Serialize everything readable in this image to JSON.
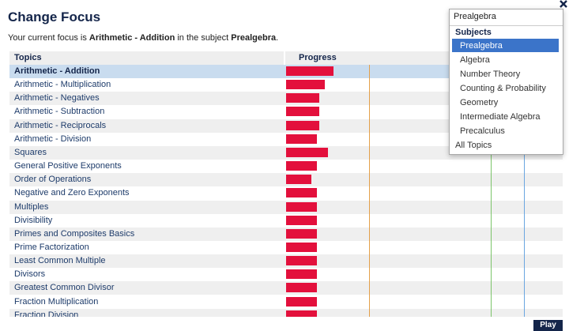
{
  "header": {
    "title": "Change Focus",
    "intro": [
      "Your current focus is ",
      "Arithmetic - Addition",
      " in the subject ",
      "Prealgebra",
      "."
    ]
  },
  "table": {
    "columns": [
      "Topics",
      "Progress"
    ],
    "selected_row": 0,
    "progress_max": 100,
    "markers": [
      {
        "value": 30,
        "color": "#e3a04a"
      },
      {
        "value": 74,
        "color": "#7cc46a"
      },
      {
        "value": 86,
        "color": "#6aa6e0"
      }
    ],
    "rows": [
      {
        "topic": "Arithmetic - Addition",
        "progress": 17
      },
      {
        "topic": "Arithmetic - Multiplication",
        "progress": 14
      },
      {
        "topic": "Arithmetic - Negatives",
        "progress": 12
      },
      {
        "topic": "Arithmetic - Subtraction",
        "progress": 12
      },
      {
        "topic": "Arithmetic - Reciprocals",
        "progress": 12
      },
      {
        "topic": "Arithmetic - Division",
        "progress": 11
      },
      {
        "topic": "Squares",
        "progress": 15
      },
      {
        "topic": "General Positive Exponents",
        "progress": 11
      },
      {
        "topic": "Order of Operations",
        "progress": 9
      },
      {
        "topic": "Negative and Zero Exponents",
        "progress": 11
      },
      {
        "topic": "Multiples",
        "progress": 11
      },
      {
        "topic": "Divisibility",
        "progress": 11
      },
      {
        "topic": "Primes and Composites Basics",
        "progress": 11
      },
      {
        "topic": "Prime Factorization",
        "progress": 11
      },
      {
        "topic": "Least Common Multiple",
        "progress": 11
      },
      {
        "topic": "Divisors",
        "progress": 11
      },
      {
        "topic": "Greatest Common Divisor",
        "progress": 11
      },
      {
        "topic": "Fraction Multiplication",
        "progress": 11
      },
      {
        "topic": "Fraction Division",
        "progress": 11
      }
    ]
  },
  "dropdown": {
    "value": "Prealgebra",
    "group": "Subjects",
    "selected": 0,
    "options": [
      "Prealgebra",
      "Algebra",
      "Number Theory",
      "Counting & Probability",
      "Geometry",
      "Intermediate Algebra",
      "Precalculus"
    ],
    "footer": "All Topics"
  },
  "button": "Play"
}
